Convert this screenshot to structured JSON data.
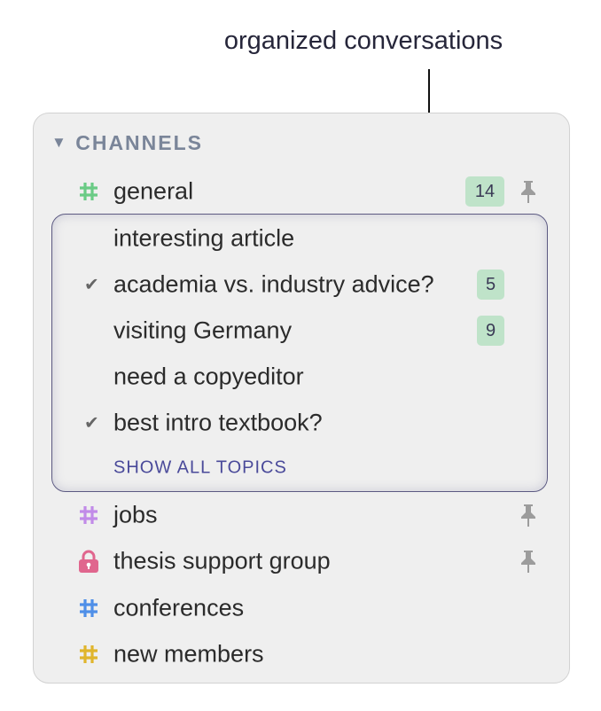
{
  "annotation": "organized conversations",
  "sidebar": {
    "section_title": "CHANNELS",
    "channels": [
      {
        "name": "general",
        "icon": "hash-icon",
        "color": "#6acb85",
        "unread": "14",
        "pinned": true
      },
      {
        "name": "jobs",
        "icon": "hash-icon",
        "color": "#c18be8",
        "pinned": true
      },
      {
        "name": "thesis support group",
        "icon": "lock-icon",
        "color": "#e0668e",
        "pinned": true
      },
      {
        "name": "conferences",
        "icon": "hash-icon",
        "color": "#4f8fe8",
        "pinned": false
      },
      {
        "name": "new members",
        "icon": "hash-icon",
        "color": "#e0b52c",
        "pinned": false
      }
    ],
    "topics": [
      {
        "name": "interesting article",
        "resolved": false
      },
      {
        "name": "academia vs. industry advice?",
        "resolved": true,
        "unread": "5"
      },
      {
        "name": "visiting Germany",
        "resolved": false,
        "unread": "9"
      },
      {
        "name": "need a copyeditor",
        "resolved": false
      },
      {
        "name": "best intro textbook?",
        "resolved": true
      }
    ],
    "show_all": "SHOW ALL TOPICS"
  }
}
